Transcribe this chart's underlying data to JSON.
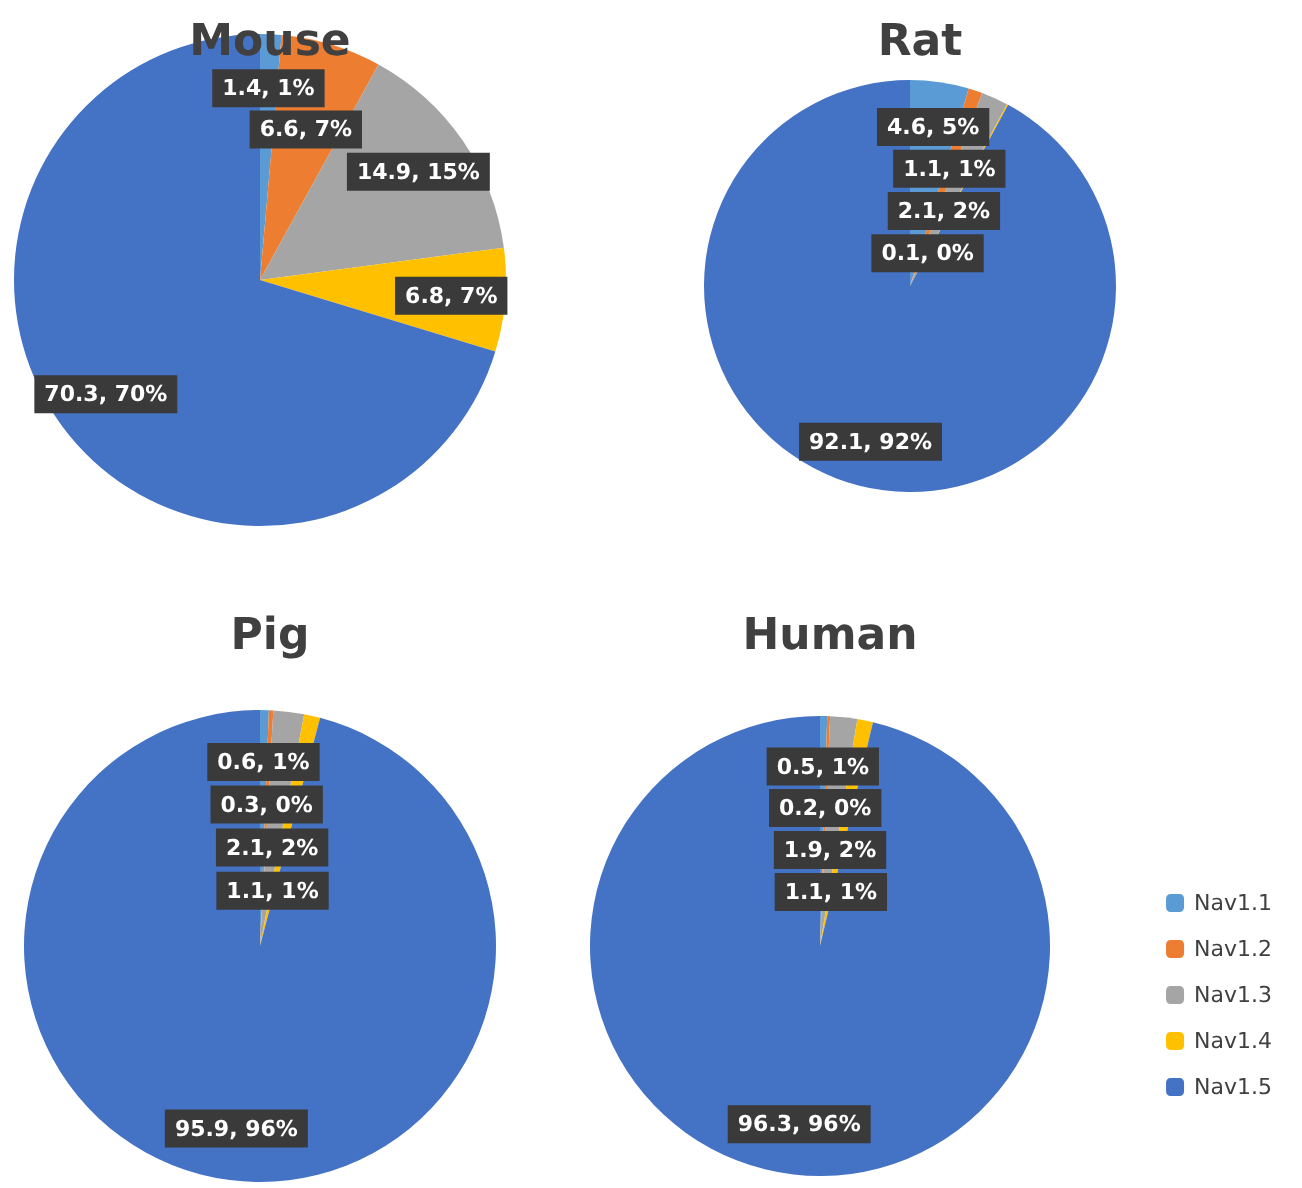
{
  "chart_data": [
    {
      "type": "pie",
      "title": "Mouse",
      "categories": [
        null,
        null,
        null,
        null,
        null
      ],
      "values": [
        1.4,
        6.6,
        14.9,
        6.8,
        70.3
      ],
      "colors": [
        "#5b9bd5",
        "#ed7d31",
        "#a5a5a5",
        "#ffc000",
        "#4472c4"
      ],
      "value_labels": [
        "1.4, 1%",
        "6.6, 7%",
        "14.9, 15%",
        "6.8, 7%",
        "70.3, 70%"
      ],
      "legend": false
    },
    {
      "type": "pie",
      "title": "Rat",
      "categories": [
        null,
        null,
        null,
        null,
        null
      ],
      "values": [
        4.6,
        1.1,
        2.1,
        0.1,
        92.1
      ],
      "colors": [
        "#5b9bd5",
        "#ed7d31",
        "#a5a5a5",
        "#ffc000",
        "#4472c4"
      ],
      "value_labels": [
        "4.6, 5%",
        "1.1, 1%",
        "2.1, 2%",
        "0.1, 0%",
        "92.1, 92%"
      ],
      "legend": false
    },
    {
      "type": "pie",
      "title": "Pig",
      "categories": [
        null,
        null,
        null,
        null,
        null
      ],
      "values": [
        0.6,
        0.3,
        2.1,
        1.1,
        95.9
      ],
      "colors": [
        "#5b9bd5",
        "#ed7d31",
        "#a5a5a5",
        "#ffc000",
        "#4472c4"
      ],
      "value_labels": [
        "0.6, 1%",
        "0.3, 0%",
        "2.1, 2%",
        "1.1, 1%",
        "95.9, 96%"
      ],
      "legend": false
    },
    {
      "type": "pie",
      "title": "Human",
      "categories": [
        "Nav1.1",
        "Nav1.2",
        "Nav1.3",
        "Nav1.4",
        "Nav1.5"
      ],
      "values": [
        0.5,
        0.2,
        1.9,
        1.1,
        96.3
      ],
      "colors": [
        "#5b9bd5",
        "#ed7d31",
        "#a5a5a5",
        "#ffc000",
        "#4472c4"
      ],
      "value_labels": [
        "0.5, 1%",
        "0.2, 0%",
        "1.9, 2%",
        "1.1, 1%",
        "96.3, 96%"
      ],
      "legend": "bottom right"
    }
  ]
}
